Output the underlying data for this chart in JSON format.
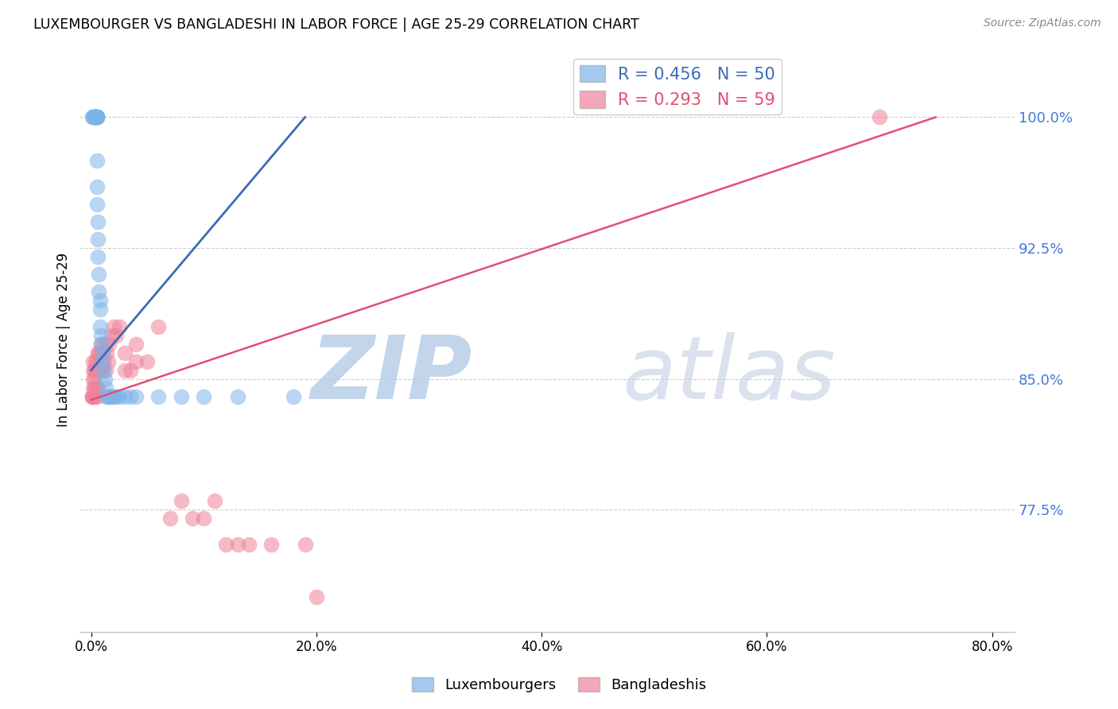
{
  "title": "LUXEMBOURGER VS BANGLADESHI IN LABOR FORCE | AGE 25-29 CORRELATION CHART",
  "source": "Source: ZipAtlas.com",
  "ylabel": "In Labor Force | Age 25-29",
  "xlabel_ticks": [
    "0.0%",
    "20.0%",
    "40.0%",
    "60.0%",
    "80.0%"
  ],
  "xlabel_vals": [
    0.0,
    0.2,
    0.4,
    0.6,
    0.8
  ],
  "yticks": [
    0.775,
    0.85,
    0.925,
    1.0
  ],
  "ytick_labels": [
    "77.5%",
    "85.0%",
    "92.5%",
    "100.0%"
  ],
  "xlim": [
    -0.01,
    0.82
  ],
  "ylim": [
    0.705,
    1.04
  ],
  "blue_R": 0.456,
  "blue_N": 50,
  "pink_R": 0.293,
  "pink_N": 59,
  "blue_color": "#7EB3E8",
  "pink_color": "#F0829A",
  "blue_line_color": "#3B6BB5",
  "pink_line_color": "#E05070",
  "legend_blue_label": "Luxembourgers",
  "legend_pink_label": "Bangladeshis",
  "watermark_zip": "ZIP",
  "watermark_atlas": "atlas",
  "blue_scatter_x": [
    0.001,
    0.002,
    0.002,
    0.003,
    0.003,
    0.003,
    0.003,
    0.004,
    0.004,
    0.004,
    0.004,
    0.004,
    0.005,
    0.005,
    0.005,
    0.005,
    0.005,
    0.005,
    0.005,
    0.005,
    0.006,
    0.006,
    0.006,
    0.007,
    0.007,
    0.008,
    0.008,
    0.008,
    0.009,
    0.009,
    0.01,
    0.01,
    0.011,
    0.012,
    0.013,
    0.013,
    0.015,
    0.016,
    0.018,
    0.02,
    0.022,
    0.025,
    0.03,
    0.035,
    0.04,
    0.06,
    0.08,
    0.1,
    0.13,
    0.18
  ],
  "blue_scatter_y": [
    1.0,
    1.0,
    1.0,
    1.0,
    1.0,
    1.0,
    1.0,
    1.0,
    1.0,
    1.0,
    1.0,
    1.0,
    1.0,
    1.0,
    1.0,
    1.0,
    1.0,
    0.975,
    0.96,
    0.95,
    0.94,
    0.93,
    0.92,
    0.91,
    0.9,
    0.895,
    0.89,
    0.88,
    0.875,
    0.87,
    0.865,
    0.86,
    0.855,
    0.85,
    0.845,
    0.84,
    0.84,
    0.84,
    0.84,
    0.84,
    0.84,
    0.84,
    0.84,
    0.84,
    0.84,
    0.84,
    0.84,
    0.84,
    0.84,
    0.84
  ],
  "pink_scatter_x": [
    0.001,
    0.001,
    0.001,
    0.002,
    0.002,
    0.002,
    0.002,
    0.002,
    0.003,
    0.003,
    0.003,
    0.003,
    0.004,
    0.004,
    0.004,
    0.005,
    0.005,
    0.005,
    0.005,
    0.006,
    0.006,
    0.006,
    0.007,
    0.007,
    0.008,
    0.008,
    0.009,
    0.009,
    0.01,
    0.01,
    0.011,
    0.012,
    0.013,
    0.014,
    0.015,
    0.016,
    0.018,
    0.02,
    0.022,
    0.025,
    0.03,
    0.03,
    0.035,
    0.04,
    0.04,
    0.05,
    0.06,
    0.07,
    0.08,
    0.09,
    0.1,
    0.11,
    0.12,
    0.13,
    0.14,
    0.16,
    0.19,
    0.2,
    0.7
  ],
  "pink_scatter_y": [
    0.84,
    0.84,
    0.84,
    0.84,
    0.845,
    0.85,
    0.855,
    0.86,
    0.84,
    0.845,
    0.85,
    0.855,
    0.845,
    0.855,
    0.86,
    0.84,
    0.845,
    0.855,
    0.86,
    0.845,
    0.855,
    0.865,
    0.855,
    0.865,
    0.855,
    0.865,
    0.86,
    0.87,
    0.855,
    0.865,
    0.86,
    0.87,
    0.855,
    0.865,
    0.86,
    0.87,
    0.875,
    0.88,
    0.875,
    0.88,
    0.855,
    0.865,
    0.855,
    0.86,
    0.87,
    0.86,
    0.88,
    0.77,
    0.78,
    0.77,
    0.77,
    0.78,
    0.755,
    0.755,
    0.755,
    0.755,
    0.755,
    0.725,
    1.0
  ],
  "blue_line_x": [
    0.0,
    0.19
  ],
  "blue_line_y": [
    0.855,
    1.0
  ],
  "pink_line_x": [
    0.0,
    0.75
  ],
  "pink_line_y": [
    0.838,
    1.0
  ]
}
